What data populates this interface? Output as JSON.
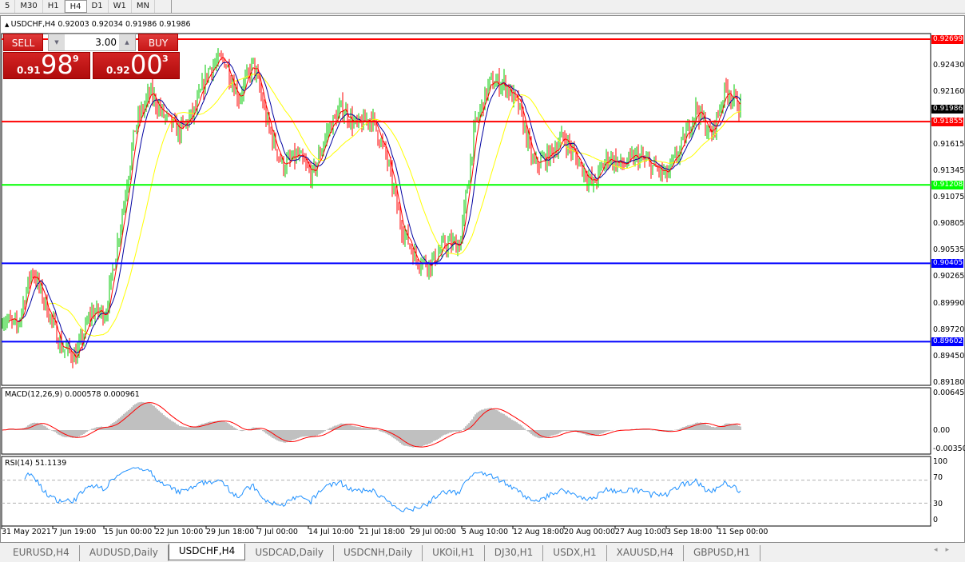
{
  "timeframes": [
    {
      "label": "5"
    },
    {
      "label": "M30"
    },
    {
      "label": "H1"
    },
    {
      "label": "H4",
      "active": true
    },
    {
      "label": "D1"
    },
    {
      "label": "W1"
    },
    {
      "label": "MN"
    }
  ],
  "header": {
    "symbol": "USDCHF,H4",
    "ohlc": "0.92003 0.92034 0.91986 0.91986"
  },
  "trade_panel": {
    "sell_label": "SELL",
    "buy_label": "BUY",
    "lot": "3.00",
    "sell_small": "0.91",
    "sell_big": "98",
    "sell_sup": "9",
    "buy_small": "0.92",
    "buy_big": "00",
    "buy_sup": "3"
  },
  "price_axis": {
    "ticks": [
      "0.92430",
      "0.92160",
      "0.91615",
      "0.91345",
      "0.91075",
      "0.90805",
      "0.90535",
      "0.90265",
      "0.89990",
      "0.89720",
      "0.89450",
      "0.89180"
    ],
    "max": 0.92699,
    "min": 0.8918
  },
  "hlines": [
    {
      "price": "0.92699",
      "color": "#ff0000"
    },
    {
      "price": "0.91855",
      "color": "#ff0000"
    },
    {
      "price": "0.91208",
      "color": "#00ff00"
    },
    {
      "price": "0.90405",
      "color": "#0000ff"
    },
    {
      "price": "0.89602",
      "color": "#0000ff"
    }
  ],
  "current_price": "0.91986",
  "colors": {
    "bull": "#00c800",
    "bear": "#ff0000",
    "ma_fast": "#ff0000",
    "ma_mid": "#0000a0",
    "ma_slow": "#ffff00",
    "macd_hist": "#c0c0c0",
    "macd_signal": "#ff0000",
    "rsi": "#1e90ff"
  },
  "chart_data": {
    "type": "candlestick",
    "symbol": "USDCHF",
    "timeframe": "H4",
    "approx_close_path": [
      0.8985,
      0.8975,
      0.9035,
      0.8995,
      0.8955,
      0.8945,
      0.899,
      0.899,
      0.908,
      0.918,
      0.9215,
      0.919,
      0.9175,
      0.9195,
      0.924,
      0.925,
      0.921,
      0.9245,
      0.918,
      0.914,
      0.915,
      0.913,
      0.9175,
      0.92,
      0.918,
      0.919,
      0.915,
      0.908,
      0.9045,
      0.904,
      0.906,
      0.906,
      0.918,
      0.9225,
      0.9225,
      0.92,
      0.914,
      0.915,
      0.917,
      0.9145,
      0.912,
      0.915,
      0.914,
      0.915,
      0.914,
      0.913,
      0.916,
      0.92,
      0.917,
      0.922,
      0.9199
    ]
  },
  "macd": {
    "label": "MACD(12,26,9) 0.000578 0.000961",
    "ticks": [
      "0.006451",
      "0.00",
      "-0.003507"
    ]
  },
  "rsi": {
    "label": "RSI(14) 51.1139",
    "ticks": [
      "100",
      "70",
      "30",
      "0"
    ]
  },
  "time_axis": [
    "31 May 2021",
    "7 Jun 19:00",
    "15 Jun 00:00",
    "22 Jun 10:00",
    "29 Jun 18:00",
    "7 Jul 00:00",
    "14 Jul 10:00",
    "21 Jul 18:00",
    "29 Jul 00:00",
    "5 Aug 10:00",
    "12 Aug 18:00",
    "20 Aug 00:00",
    "27 Aug 10:00",
    "3 Sep 18:00",
    "11 Sep 00:00"
  ],
  "tabs": [
    {
      "label": "EURUSD,H4"
    },
    {
      "label": "AUDUSD,Daily"
    },
    {
      "label": "USDCHF,H4",
      "active": true
    },
    {
      "label": "USDCAD,Daily"
    },
    {
      "label": "USDCNH,Daily"
    },
    {
      "label": "UKOil,H1"
    },
    {
      "label": "DJ30,H1"
    },
    {
      "label": "USDX,H1"
    },
    {
      "label": "XAUUSD,H4"
    },
    {
      "label": "GBPUSD,H1"
    }
  ]
}
